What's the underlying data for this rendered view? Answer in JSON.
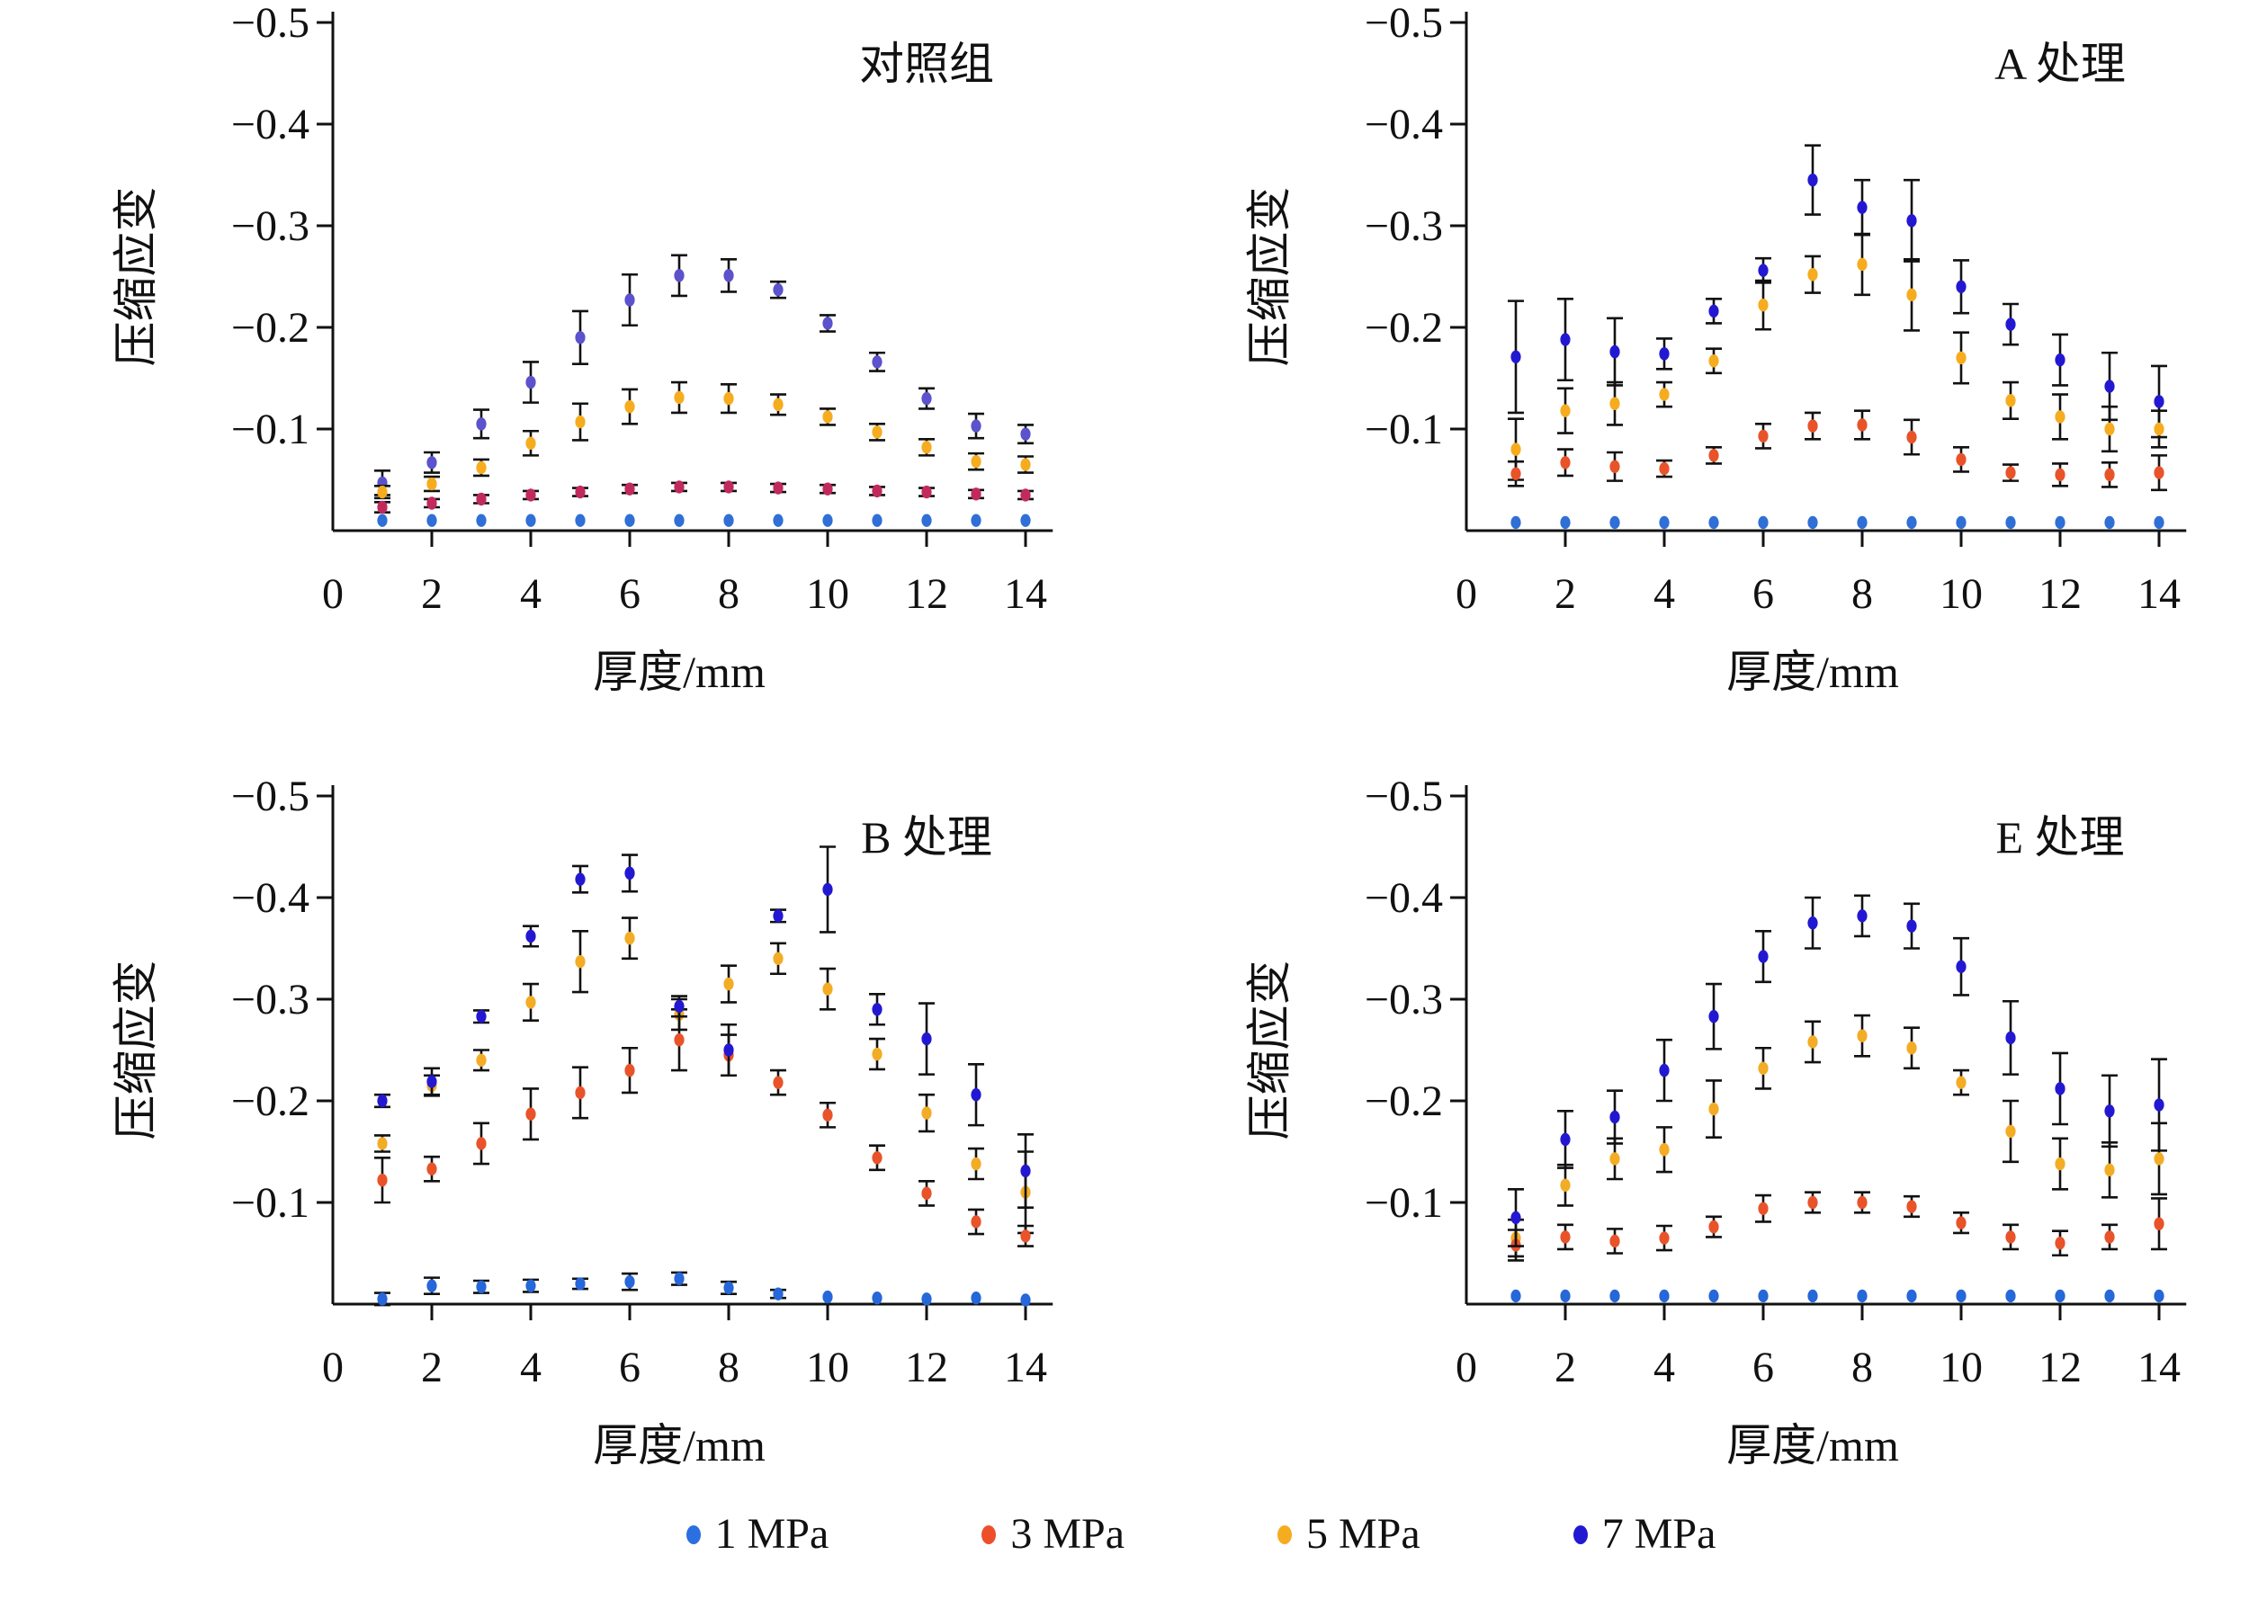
{
  "figure": {
    "background": "#ffffff"
  },
  "legend": {
    "items": [
      {
        "label": "1 MPa",
        "color": "#2B6FE0"
      },
      {
        "label": "3 MPa",
        "color": "#EE4F2B"
      },
      {
        "label": "5 MPa",
        "color": "#F6AC1F"
      },
      {
        "label": "7 MPa",
        "color": "#2318D2"
      }
    ]
  },
  "chart_data": {
    "type": "scatter",
    "x_label": "厚度/mm",
    "y_label": "压缩应变",
    "x": [
      1,
      2,
      3,
      4,
      5,
      6,
      7,
      8,
      9,
      10,
      11,
      12,
      13,
      14
    ],
    "x_ticks": [
      0,
      2,
      4,
      6,
      8,
      10,
      12,
      14
    ],
    "y_ticks": [
      -0.1,
      -0.2,
      -0.3,
      -0.4,
      -0.5
    ],
    "x_range": [
      0,
      14.5
    ],
    "y_range": [
      0,
      -0.5
    ],
    "grid": false,
    "legend_position": "bottom",
    "error_bars": true,
    "panels": [
      {
        "title": "对照组",
        "draw_order": [
          3,
          2,
          1,
          0
        ],
        "series": [
          {
            "name": "1 MPa",
            "color": "#2F6FD6",
            "values": [
              -0.01,
              -0.01,
              -0.01,
              -0.01,
              -0.01,
              -0.01,
              -0.01,
              -0.01,
              -0.01,
              -0.01,
              -0.01,
              -0.01,
              -0.01,
              -0.01
            ],
            "errors": [
              0.003,
              0.003,
              0.003,
              0.003,
              0.003,
              0.003,
              0.003,
              0.003,
              0.003,
              0.003,
              0.003,
              0.003,
              0.003,
              0.003
            ]
          },
          {
            "name": "3 MPa",
            "color": "#C22A5C",
            "values": [
              -0.023,
              -0.027,
              -0.031,
              -0.035,
              -0.038,
              -0.041,
              -0.043,
              -0.043,
              -0.042,
              -0.041,
              -0.039,
              -0.038,
              -0.036,
              -0.035
            ],
            "errors": [
              0.005,
              0.004,
              0.004,
              0.004,
              0.004,
              0.004,
              0.004,
              0.004,
              0.004,
              0.004,
              0.004,
              0.004,
              0.004,
              0.004
            ]
          },
          {
            "name": "5 MPa",
            "color": "#F6AC1F",
            "values": [
              -0.038,
              -0.046,
              -0.062,
              -0.086,
              -0.107,
              -0.122,
              -0.131,
              -0.13,
              -0.124,
              -0.112,
              -0.097,
              -0.082,
              -0.068,
              -0.065
            ],
            "errors": [
              0.006,
              0.007,
              0.008,
              0.012,
              0.018,
              0.017,
              0.015,
              0.014,
              0.01,
              0.008,
              0.008,
              0.008,
              0.008,
              0.008
            ]
          },
          {
            "name": "7 MPa",
            "color": "#5B52CC",
            "values": [
              -0.047,
              -0.067,
              -0.105,
              -0.146,
              -0.19,
              -0.227,
              -0.251,
              -0.251,
              -0.237,
              -0.204,
              -0.166,
              -0.13,
              -0.103,
              -0.095
            ],
            "errors": [
              0.012,
              0.01,
              0.014,
              0.02,
              0.026,
              0.025,
              0.02,
              0.016,
              0.008,
              0.008,
              0.009,
              0.01,
              0.012,
              0.009
            ]
          }
        ]
      },
      {
        "title": "A 处理",
        "draw_order": [
          3,
          2,
          1,
          0
        ],
        "series": [
          {
            "name": "1 MPa",
            "color": "#2F6FD6",
            "values": [
              -0.008,
              -0.008,
              -0.008,
              -0.008,
              -0.008,
              -0.008,
              -0.008,
              -0.008,
              -0.008,
              -0.008,
              -0.008,
              -0.008,
              -0.008,
              -0.008
            ],
            "errors": [
              0.003,
              0.003,
              0.003,
              0.003,
              0.003,
              0.003,
              0.003,
              0.003,
              0.003,
              0.003,
              0.003,
              0.003,
              0.003,
              0.003
            ]
          },
          {
            "name": "3 MPa",
            "color": "#E95329",
            "values": [
              -0.056,
              -0.067,
              -0.063,
              -0.061,
              -0.074,
              -0.093,
              -0.103,
              -0.104,
              -0.092,
              -0.07,
              -0.057,
              -0.055,
              -0.055,
              -0.057
            ],
            "errors": [
              0.012,
              0.013,
              0.014,
              0.008,
              0.008,
              0.012,
              0.013,
              0.014,
              0.017,
              0.012,
              0.008,
              0.011,
              0.012,
              0.017
            ]
          },
          {
            "name": "5 MPa",
            "color": "#F6AC1F",
            "values": [
              -0.08,
              -0.118,
              -0.125,
              -0.134,
              -0.167,
              -0.222,
              -0.252,
              -0.262,
              -0.232,
              -0.17,
              -0.128,
              -0.112,
              -0.1,
              -0.1
            ],
            "errors": [
              0.03,
              0.022,
              0.021,
              0.012,
              0.012,
              0.024,
              0.018,
              0.03,
              0.035,
              0.025,
              0.018,
              0.022,
              0.022,
              0.018
            ]
          },
          {
            "name": "7 MPa",
            "color": "#2318D2",
            "values": [
              -0.171,
              -0.188,
              -0.176,
              -0.174,
              -0.216,
              -0.256,
              -0.345,
              -0.318,
              -0.305,
              -0.24,
              -0.203,
              -0.168,
              -0.142,
              -0.127
            ],
            "errors": [
              0.055,
              0.04,
              0.033,
              0.015,
              0.012,
              0.012,
              0.034,
              0.027,
              0.04,
              0.026,
              0.02,
              0.025,
              0.033,
              0.035
            ]
          }
        ]
      },
      {
        "title": "B 处理",
        "draw_order": [
          2,
          1,
          3,
          0
        ],
        "series": [
          {
            "name": "1 MPa",
            "color": "#2667D9",
            "values": [
              -0.005,
              -0.018,
              -0.017,
              -0.018,
              -0.02,
              -0.022,
              -0.025,
              -0.016,
              -0.01,
              -0.007,
              -0.006,
              -0.005,
              -0.006,
              -0.004
            ],
            "errors": [
              0.006,
              0.008,
              0.006,
              0.006,
              0.005,
              0.008,
              0.006,
              0.006,
              0.004,
              0.003,
              0.003,
              0.003,
              0.003,
              0.003
            ]
          },
          {
            "name": "3 MPa",
            "color": "#E95329",
            "values": [
              -0.122,
              -0.133,
              -0.158,
              -0.187,
              -0.208,
              -0.23,
              -0.26,
              -0.245,
              -0.218,
              -0.186,
              -0.144,
              -0.109,
              -0.081,
              -0.067
            ],
            "errors": [
              0.022,
              0.012,
              0.02,
              0.025,
              0.025,
              0.022,
              0.03,
              0.02,
              0.012,
              0.012,
              0.012,
              0.012,
              0.012,
              0.01
            ]
          },
          {
            "name": "5 MPa",
            "color": "#F3AC25",
            "values": [
              -0.158,
              -0.215,
              -0.24,
              -0.297,
              -0.337,
              -0.36,
              -0.285,
              -0.315,
              -0.34,
              -0.31,
              -0.246,
              -0.188,
              -0.138,
              -0.11
            ],
            "errors": [
              0.008,
              0.01,
              0.01,
              0.018,
              0.03,
              0.02,
              0.015,
              0.018,
              0.015,
              0.02,
              0.015,
              0.018,
              0.015,
              0.04
            ]
          },
          {
            "name": "7 MPa",
            "color": "#2318D2",
            "values": [
              -0.2,
              -0.219,
              -0.283,
              -0.362,
              -0.418,
              -0.424,
              -0.293,
              -0.25,
              -0.382,
              -0.408,
              -0.29,
              -0.261,
              -0.206,
              -0.131
            ],
            "errors": [
              0.006,
              0.013,
              0.006,
              0.01,
              0.013,
              0.018,
              0.01,
              0.025,
              0.006,
              0.042,
              0.015,
              0.035,
              0.03,
              0.036
            ]
          }
        ]
      },
      {
        "title": "E 处理",
        "draw_order": [
          2,
          1,
          3,
          0
        ],
        "series": [
          {
            "name": "1 MPa",
            "color": "#2667D9",
            "values": [
              -0.008,
              -0.008,
              -0.008,
              -0.008,
              -0.008,
              -0.008,
              -0.008,
              -0.008,
              -0.008,
              -0.008,
              -0.008,
              -0.008,
              -0.008,
              -0.008
            ],
            "errors": [
              0.003,
              0.003,
              0.003,
              0.003,
              0.003,
              0.003,
              0.003,
              0.003,
              0.003,
              0.003,
              0.003,
              0.003,
              0.003,
              0.003
            ]
          },
          {
            "name": "3 MPa",
            "color": "#E95329",
            "values": [
              -0.058,
              -0.066,
              -0.062,
              -0.065,
              -0.076,
              -0.094,
              -0.1,
              -0.1,
              -0.096,
              -0.08,
              -0.066,
              -0.06,
              -0.066,
              -0.079
            ],
            "errors": [
              0.015,
              0.012,
              0.012,
              0.012,
              0.01,
              0.013,
              0.01,
              0.01,
              0.01,
              0.01,
              0.012,
              0.012,
              0.012,
              0.025
            ]
          },
          {
            "name": "5 MPa",
            "color": "#F3AC25",
            "values": [
              -0.065,
              -0.117,
              -0.143,
              -0.152,
              -0.192,
              -0.232,
              -0.258,
              -0.264,
              -0.252,
              -0.218,
              -0.17,
              -0.138,
              -0.132,
              -0.143
            ],
            "errors": [
              0.018,
              0.02,
              0.02,
              0.022,
              0.028,
              0.02,
              0.02,
              0.02,
              0.02,
              0.012,
              0.03,
              0.025,
              0.027,
              0.035
            ]
          },
          {
            "name": "7 MPa",
            "color": "#2318D2",
            "values": [
              -0.085,
              -0.162,
              -0.184,
              -0.23,
              -0.283,
              -0.342,
              -0.375,
              -0.382,
              -0.372,
              -0.332,
              -0.262,
              -0.212,
              -0.19,
              -0.196
            ],
            "errors": [
              0.028,
              0.028,
              0.026,
              0.03,
              0.032,
              0.025,
              0.025,
              0.02,
              0.022,
              0.028,
              0.036,
              0.035,
              0.035,
              0.045
            ]
          }
        ]
      }
    ]
  }
}
